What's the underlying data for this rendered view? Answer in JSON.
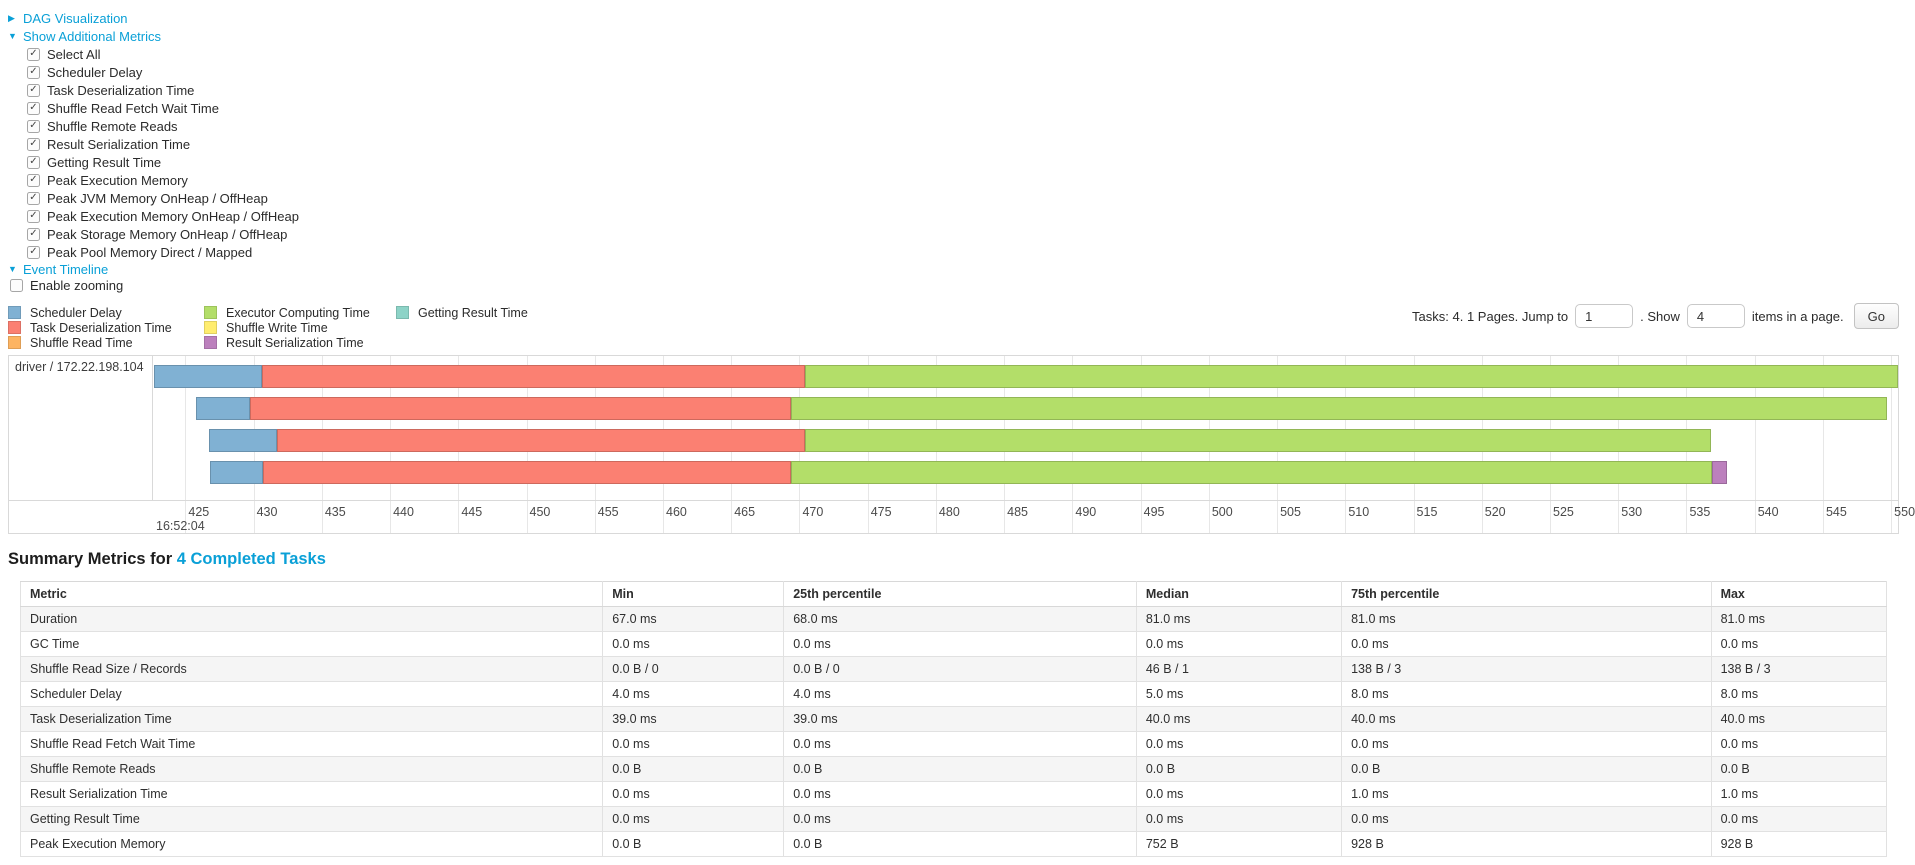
{
  "panel": {
    "dag": {
      "arrow": "▶",
      "label": "DAG Visualization"
    },
    "show_metrics": {
      "arrow": "▼",
      "label": "Show Additional Metrics"
    },
    "checkboxes": [
      {
        "label": "Select All",
        "checked": true
      },
      {
        "label": "Scheduler Delay",
        "checked": true
      },
      {
        "label": "Task Deserialization Time",
        "checked": true
      },
      {
        "label": "Shuffle Read Fetch Wait Time",
        "checked": true
      },
      {
        "label": "Shuffle Remote Reads",
        "checked": true
      },
      {
        "label": "Result Serialization Time",
        "checked": true
      },
      {
        "label": "Getting Result Time",
        "checked": true
      },
      {
        "label": "Peak Execution Memory",
        "checked": true
      },
      {
        "label": "Peak JVM Memory OnHeap / OffHeap",
        "checked": true
      },
      {
        "label": "Peak Execution Memory OnHeap / OffHeap",
        "checked": true
      },
      {
        "label": "Peak Storage Memory OnHeap / OffHeap",
        "checked": true
      },
      {
        "label": "Peak Pool Memory Direct / Mapped",
        "checked": true
      }
    ],
    "event_timeline": {
      "arrow": "▼",
      "label": "Event Timeline"
    },
    "enable_zooming": {
      "label": "Enable zooming",
      "checked": false
    }
  },
  "legend": {
    "columns": [
      [
        {
          "key": "scheduler_delay",
          "label": "Scheduler Delay"
        },
        {
          "key": "task_deserialization",
          "label": "Task Deserialization Time"
        },
        {
          "key": "shuffle_read",
          "label": "Shuffle Read Time"
        }
      ],
      [
        {
          "key": "executor_computing",
          "label": "Executor Computing Time"
        },
        {
          "key": "shuffle_write",
          "label": "Shuffle Write Time"
        },
        {
          "key": "result_serialization",
          "label": "Result Serialization Time"
        }
      ],
      [
        {
          "key": "getting_result",
          "label": "Getting Result Time"
        }
      ]
    ]
  },
  "pagination": {
    "text_before": "Tasks: 4. 1 Pages. Jump to",
    "jump_value": "1",
    "text_mid": ". Show",
    "show_value": "4",
    "text_after": "items in a page.",
    "go_label": "Go"
  },
  "chart_data": {
    "type": "timeline",
    "group_label": "driver / 172.22.198.104",
    "x_axis": {
      "window_min": 422.7,
      "window_max": 550.5,
      "ticks": [
        425,
        430,
        435,
        440,
        445,
        450,
        455,
        460,
        465,
        470,
        475,
        480,
        485,
        490,
        495,
        500,
        505,
        510,
        515,
        520,
        525,
        530,
        535,
        540,
        545,
        550
      ],
      "time_anchor_label": "16:52:04",
      "units": "milliseconds within second 16:52:04"
    },
    "series_colors": {
      "scheduler_delay": "#80B1D3",
      "task_deserialization": "#FB8072",
      "shuffle_read": "#FDB462",
      "executor_computing": "#B3DE69",
      "shuffle_write": "#FFED6F",
      "result_serialization": "#BC80BD",
      "getting_result": "#8DD3C7"
    },
    "tasks": [
      {
        "segments": [
          {
            "key": "scheduler_delay",
            "start": 422.7,
            "end": 430.6
          },
          {
            "key": "task_deserialization",
            "start": 430.6,
            "end": 470.4
          },
          {
            "key": "executor_computing",
            "start": 470.4,
            "end": 550.5
          }
        ]
      },
      {
        "segments": [
          {
            "key": "scheduler_delay",
            "start": 425.8,
            "end": 429.7
          },
          {
            "key": "task_deserialization",
            "start": 429.7,
            "end": 469.4
          },
          {
            "key": "executor_computing",
            "start": 469.4,
            "end": 549.7
          }
        ]
      },
      {
        "segments": [
          {
            "key": "scheduler_delay",
            "start": 426.7,
            "end": 431.7
          },
          {
            "key": "task_deserialization",
            "start": 431.7,
            "end": 470.4
          },
          {
            "key": "executor_computing",
            "start": 470.4,
            "end": 536.8
          }
        ]
      },
      {
        "segments": [
          {
            "key": "scheduler_delay",
            "start": 426.8,
            "end": 430.7
          },
          {
            "key": "task_deserialization",
            "start": 430.7,
            "end": 469.4
          },
          {
            "key": "executor_computing",
            "start": 469.4,
            "end": 536.9
          },
          {
            "key": "result_serialization",
            "start": 536.9,
            "end": 538.0
          }
        ]
      }
    ]
  },
  "summary": {
    "title_prefix": "Summary Metrics for ",
    "title_link": "4 Completed Tasks",
    "table": {
      "col_widths": [
        "31.2%",
        "9.7%",
        "18.9%",
        "11%",
        "19.8%",
        "9.4%"
      ],
      "headers": [
        "Metric",
        "Min",
        "25th percentile",
        "Median",
        "75th percentile",
        "Max"
      ],
      "rows": [
        {
          "metric": "Duration",
          "values": [
            "67.0 ms",
            "68.0 ms",
            "81.0 ms",
            "81.0 ms",
            "81.0 ms"
          ]
        },
        {
          "metric": "GC Time",
          "values": [
            "0.0 ms",
            "0.0 ms",
            "0.0 ms",
            "0.0 ms",
            "0.0 ms"
          ]
        },
        {
          "metric": "Shuffle Read Size / Records",
          "values": [
            "0.0 B / 0",
            "0.0 B / 0",
            "46 B / 1",
            "138 B / 3",
            "138 B / 3"
          ]
        },
        {
          "metric": "Scheduler Delay",
          "values": [
            "4.0 ms",
            "4.0 ms",
            "5.0 ms",
            "8.0 ms",
            "8.0 ms"
          ]
        },
        {
          "metric": "Task Deserialization Time",
          "values": [
            "39.0 ms",
            "39.0 ms",
            "40.0 ms",
            "40.0 ms",
            "40.0 ms"
          ]
        },
        {
          "metric": "Shuffle Read Fetch Wait Time",
          "values": [
            "0.0 ms",
            "0.0 ms",
            "0.0 ms",
            "0.0 ms",
            "0.0 ms"
          ]
        },
        {
          "metric": "Shuffle Remote Reads",
          "values": [
            "0.0 B",
            "0.0 B",
            "0.0 B",
            "0.0 B",
            "0.0 B"
          ]
        },
        {
          "metric": "Result Serialization Time",
          "values": [
            "0.0 ms",
            "0.0 ms",
            "0.0 ms",
            "1.0 ms",
            "1.0 ms"
          ]
        },
        {
          "metric": "Getting Result Time",
          "values": [
            "0.0 ms",
            "0.0 ms",
            "0.0 ms",
            "0.0 ms",
            "0.0 ms"
          ]
        },
        {
          "metric": "Peak Execution Memory",
          "values": [
            "0.0 B",
            "0.0 B",
            "752 B",
            "928 B",
            "928 B"
          ]
        }
      ]
    }
  }
}
